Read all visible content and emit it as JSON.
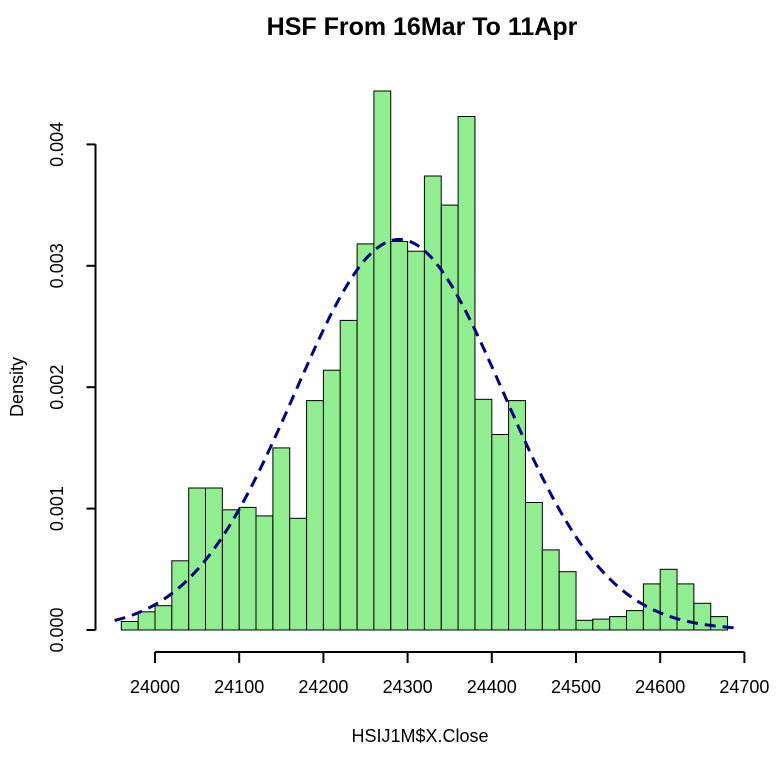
{
  "title": "HSF From 16Mar To 11Apr",
  "chart_data": {
    "type": "bar",
    "subtype": "histogram",
    "title": "HSF From 16Mar To 11Apr",
    "xlabel": "HSIJ1M$X.Close",
    "ylabel": "Density",
    "bin_start": 23960,
    "bin_width": 20,
    "densities": [
      7e-05,
      0.00015,
      0.0002,
      0.00057,
      0.00117,
      0.00117,
      0.00099,
      0.00101,
      0.00094,
      0.0015,
      0.00092,
      0.00189,
      0.00214,
      0.00255,
      0.00318,
      0.00444,
      0.0032,
      0.00312,
      0.00374,
      0.0035,
      0.00423,
      0.0019,
      0.00161,
      0.00189,
      0.00105,
      0.00066,
      0.00048,
      8e-05,
      9e-05,
      0.00011,
      0.00016,
      0.00038,
      0.0005,
      0.00038,
      0.00022,
      0.00011
    ],
    "x_ticks": [
      {
        "value": 24000,
        "label": "24000"
      },
      {
        "value": 24100,
        "label": "24100"
      },
      {
        "value": 24200,
        "label": "24200"
      },
      {
        "value": 24300,
        "label": "24300"
      },
      {
        "value": 24400,
        "label": "24400"
      },
      {
        "value": 24500,
        "label": "24500"
      },
      {
        "value": 24600,
        "label": "24600"
      },
      {
        "value": 24700,
        "label": "24700"
      }
    ],
    "y_ticks": [
      {
        "value": 0.0,
        "label": "0.000"
      },
      {
        "value": 0.001,
        "label": "0.001"
      },
      {
        "value": 0.002,
        "label": "0.002"
      },
      {
        "value": 0.003,
        "label": "0.003"
      },
      {
        "value": 0.004,
        "label": "0.004"
      }
    ],
    "xlim": [
      23960,
      24700
    ],
    "ylim": [
      0,
      0.0044
    ],
    "grid": false,
    "legend": "none",
    "bar_fill": "#90EE90",
    "bar_border": "#000000",
    "axis_color": "#000000",
    "curve": {
      "type": "normal-density",
      "mean": 24290,
      "sd": 124,
      "peak_density": 0.00318,
      "color": "#000080",
      "line_style": "dashed",
      "x_from": 23952,
      "x_to": 24692
    }
  }
}
